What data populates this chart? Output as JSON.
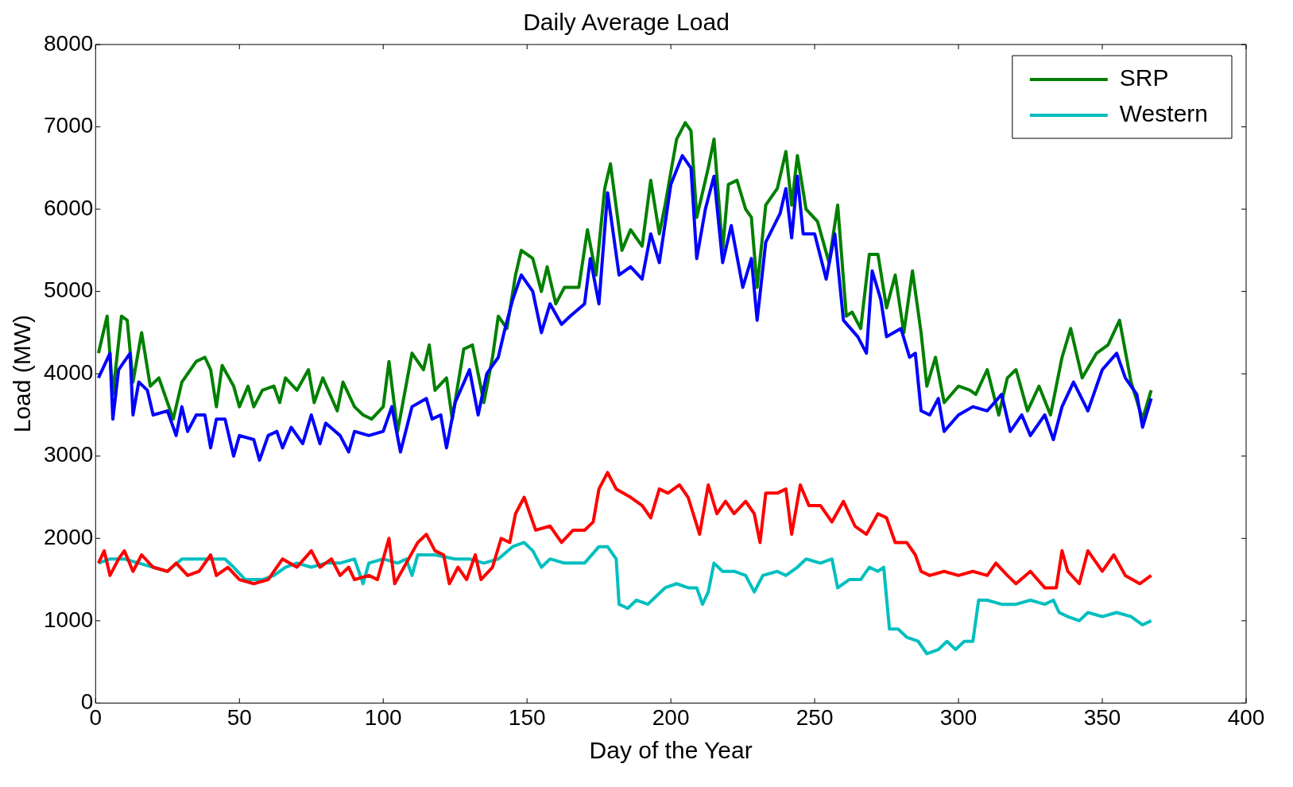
{
  "chart_data": {
    "type": "line",
    "title": "Daily Average Load",
    "xlabel": "Day of the Year",
    "ylabel": "Load (MW)",
    "xlim": [
      0,
      400
    ],
    "xticks": [
      0,
      50,
      100,
      150,
      200,
      250,
      300,
      350,
      400
    ],
    "ylim": [
      0,
      8000
    ],
    "yticks": [
      0,
      1000,
      2000,
      3000,
      4000,
      5000,
      6000,
      7000,
      8000
    ],
    "grid": false,
    "legend": "top right",
    "marker": "none",
    "line_style": "solid",
    "series": [
      {
        "color": "#0000ff",
        "x": [
          1,
          3,
          5,
          6,
          8,
          10,
          12,
          13,
          15,
          18,
          20,
          25,
          28,
          30,
          32,
          35,
          38,
          40,
          42,
          45,
          48,
          50,
          55,
          57,
          60,
          63,
          65,
          68,
          72,
          75,
          78,
          80,
          85,
          88,
          90,
          95,
          100,
          103,
          106,
          110,
          115,
          117,
          120,
          122,
          125,
          130,
          133,
          136,
          140,
          142,
          145,
          148,
          152,
          155,
          158,
          162,
          165,
          170,
          172,
          175,
          178,
          182,
          186,
          190,
          193,
          196,
          200,
          204,
          207,
          209,
          212,
          215,
          218,
          221,
          225,
          228,
          230,
          233,
          238,
          240,
          242,
          244,
          246,
          250,
          254,
          257,
          260,
          265,
          268,
          270,
          273,
          275,
          280,
          283,
          285,
          287,
          290,
          293,
          295,
          300,
          305,
          310,
          315,
          318,
          322,
          325,
          330,
          333,
          336,
          340,
          345,
          350,
          355,
          358,
          362,
          364,
          367
        ],
        "values": [
          3950,
          4100,
          4250,
          3450,
          4050,
          4150,
          4250,
          3500,
          3900,
          3800,
          3500,
          3550,
          3250,
          3600,
          3300,
          3500,
          3500,
          3100,
          3450,
          3450,
          3000,
          3250,
          3200,
          2950,
          3250,
          3300,
          3100,
          3350,
          3150,
          3500,
          3150,
          3400,
          3250,
          3050,
          3300,
          3250,
          3300,
          3600,
          3050,
          3600,
          3700,
          3450,
          3500,
          3100,
          3650,
          4050,
          3500,
          4000,
          4200,
          4500,
          4900,
          5200,
          5000,
          4500,
          4850,
          4600,
          4700,
          4850,
          5400,
          4850,
          6200,
          5200,
          5300,
          5150,
          5700,
          5350,
          6300,
          6650,
          6500,
          5400,
          6000,
          6400,
          5350,
          5800,
          5050,
          5400,
          4650,
          5600,
          5950,
          6250,
          5650,
          6400,
          5700,
          5700,
          5150,
          5700,
          4650,
          4450,
          4250,
          5250,
          4900,
          4450,
          4550,
          4200,
          4250,
          3550,
          3500,
          3700,
          3300,
          3500,
          3600,
          3550,
          3750,
          3300,
          3500,
          3250,
          3500,
          3200,
          3600,
          3900,
          3550,
          4050,
          4250,
          3950,
          3750,
          3350,
          3700
        ]
      },
      {
        "name": "SRP",
        "color": "#008000",
        "x": [
          1,
          4,
          6,
          9,
          11,
          13,
          16,
          19,
          22,
          27,
          30,
          35,
          38,
          40,
          42,
          44,
          48,
          50,
          53,
          55,
          58,
          62,
          64,
          66,
          70,
          74,
          76,
          79,
          84,
          86,
          90,
          93,
          96,
          100,
          102,
          105,
          110,
          114,
          116,
          118,
          122,
          124,
          128,
          131,
          135,
          138,
          140,
          143,
          146,
          148,
          152,
          155,
          157,
          160,
          163,
          168,
          171,
          174,
          177,
          179,
          183,
          186,
          190,
          193,
          196,
          198,
          202,
          205,
          207,
          209,
          213,
          215,
          218,
          220,
          223,
          226,
          228,
          230,
          233,
          237,
          240,
          242,
          244,
          247,
          251,
          255,
          258,
          261,
          263,
          266,
          269,
          272,
          275,
          278,
          281,
          284,
          287,
          289,
          292,
          295,
          300,
          304,
          306,
          310,
          314,
          317,
          320,
          324,
          328,
          332,
          336,
          339,
          343,
          348,
          352,
          356,
          360,
          364,
          367
        ],
        "values": [
          4250,
          4700,
          3750,
          4700,
          4650,
          3900,
          4500,
          3850,
          3950,
          3450,
          3900,
          4150,
          4200,
          4050,
          3600,
          4100,
          3850,
          3600,
          3850,
          3600,
          3800,
          3850,
          3650,
          3950,
          3800,
          4050,
          3650,
          3950,
          3550,
          3900,
          3600,
          3500,
          3450,
          3600,
          4150,
          3300,
          4250,
          4050,
          4350,
          3800,
          3950,
          3450,
          4300,
          4350,
          3650,
          4200,
          4700,
          4550,
          5200,
          5500,
          5400,
          5000,
          5300,
          4850,
          5050,
          5050,
          5750,
          5200,
          6250,
          6550,
          5500,
          5750,
          5550,
          6350,
          5700,
          6050,
          6850,
          7050,
          6950,
          5900,
          6500,
          6850,
          5500,
          6300,
          6350,
          6000,
          5900,
          5050,
          6050,
          6250,
          6700,
          6050,
          6650,
          6000,
          5850,
          5350,
          6050,
          4700,
          4750,
          4550,
          5450,
          5450,
          4800,
          5200,
          4500,
          5250,
          4500,
          3850,
          4200,
          3650,
          3850,
          3800,
          3750,
          4050,
          3500,
          3950,
          4050,
          3550,
          3850,
          3500,
          4200,
          4550,
          3950,
          4250,
          4350,
          4650,
          3900,
          3450,
          3800
        ]
      },
      {
        "color": "#ff0000",
        "x": [
          1,
          3,
          5,
          8,
          10,
          13,
          16,
          20,
          25,
          28,
          32,
          36,
          40,
          42,
          46,
          50,
          55,
          60,
          65,
          70,
          75,
          78,
          82,
          85,
          88,
          90,
          95,
          98,
          102,
          104,
          108,
          112,
          115,
          118,
          121,
          123,
          126,
          129,
          132,
          134,
          138,
          141,
          144,
          146,
          149,
          153,
          158,
          162,
          166,
          170,
          173,
          175,
          178,
          181,
          186,
          190,
          193,
          196,
          199,
          203,
          206,
          210,
          213,
          216,
          219,
          222,
          226,
          229,
          231,
          233,
          237,
          240,
          242,
          245,
          248,
          252,
          256,
          260,
          264,
          268,
          272,
          275,
          278,
          282,
          285,
          287,
          290,
          295,
          300,
          305,
          310,
          313,
          317,
          320,
          325,
          330,
          334,
          336,
          338,
          342,
          345,
          350,
          354,
          358,
          363,
          367
        ],
        "values": [
          1700,
          1850,
          1550,
          1750,
          1850,
          1600,
          1800,
          1650,
          1600,
          1700,
          1550,
          1600,
          1800,
          1550,
          1650,
          1500,
          1450,
          1500,
          1750,
          1650,
          1850,
          1650,
          1750,
          1550,
          1650,
          1500,
          1550,
          1500,
          2000,
          1450,
          1700,
          1950,
          2050,
          1850,
          1800,
          1450,
          1650,
          1500,
          1800,
          1500,
          1650,
          2000,
          1950,
          2300,
          2500,
          2100,
          2150,
          1950,
          2100,
          2100,
          2200,
          2600,
          2800,
          2600,
          2500,
          2400,
          2250,
          2600,
          2550,
          2650,
          2500,
          2050,
          2650,
          2300,
          2450,
          2300,
          2450,
          2300,
          1950,
          2550,
          2550,
          2600,
          2050,
          2650,
          2400,
          2400,
          2200,
          2450,
          2150,
          2050,
          2300,
          2250,
          1950,
          1950,
          1800,
          1600,
          1550,
          1600,
          1550,
          1600,
          1550,
          1700,
          1550,
          1450,
          1600,
          1400,
          1400,
          1850,
          1600,
          1450,
          1850,
          1600,
          1800,
          1550,
          1450,
          1550
        ]
      },
      {
        "name": "Western",
        "color": "#00bfbf",
        "x": [
          1,
          5,
          10,
          15,
          20,
          25,
          30,
          35,
          40,
          45,
          48,
          52,
          58,
          62,
          66,
          70,
          75,
          80,
          85,
          90,
          93,
          95,
          100,
          105,
          108,
          110,
          112,
          118,
          125,
          130,
          135,
          140,
          145,
          149,
          152,
          155,
          158,
          163,
          170,
          175,
          178,
          181,
          182,
          185,
          188,
          192,
          195,
          198,
          202,
          206,
          209,
          211,
          213,
          215,
          218,
          222,
          226,
          229,
          232,
          237,
          240,
          244,
          247,
          252,
          256,
          258,
          262,
          266,
          269,
          272,
          274,
          276,
          279,
          282,
          286,
          289,
          293,
          296,
          299,
          302,
          305,
          307,
          310,
          315,
          320,
          325,
          330,
          333,
          335,
          338,
          342,
          345,
          350,
          355,
          360,
          364,
          367
        ],
        "values": [
          1700,
          1750,
          1750,
          1700,
          1650,
          1600,
          1750,
          1750,
          1750,
          1750,
          1650,
          1500,
          1500,
          1550,
          1650,
          1700,
          1650,
          1700,
          1700,
          1750,
          1450,
          1700,
          1750,
          1700,
          1750,
          1550,
          1800,
          1800,
          1750,
          1750,
          1700,
          1750,
          1900,
          1950,
          1850,
          1650,
          1750,
          1700,
          1700,
          1900,
          1900,
          1750,
          1200,
          1150,
          1250,
          1200,
          1300,
          1400,
          1450,
          1400,
          1400,
          1200,
          1350,
          1700,
          1600,
          1600,
          1550,
          1350,
          1550,
          1600,
          1550,
          1650,
          1750,
          1700,
          1750,
          1400,
          1500,
          1500,
          1650,
          1600,
          1650,
          900,
          900,
          800,
          750,
          600,
          650,
          750,
          650,
          750,
          750,
          1250,
          1250,
          1200,
          1200,
          1250,
          1200,
          1250,
          1100,
          1050,
          1000,
          1100,
          1050,
          1100,
          1050,
          950,
          1000
        ]
      }
    ]
  }
}
